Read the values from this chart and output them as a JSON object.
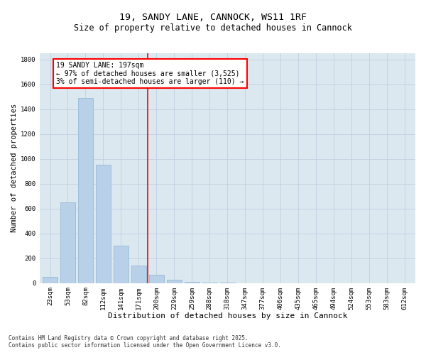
{
  "title1": "19, SANDY LANE, CANNOCK, WS11 1RF",
  "title2": "Size of property relative to detached houses in Cannock",
  "xlabel": "Distribution of detached houses by size in Cannock",
  "ylabel": "Number of detached properties",
  "categories": [
    "23sqm",
    "53sqm",
    "82sqm",
    "112sqm",
    "141sqm",
    "171sqm",
    "200sqm",
    "229sqm",
    "259sqm",
    "288sqm",
    "318sqm",
    "347sqm",
    "377sqm",
    "406sqm",
    "435sqm",
    "465sqm",
    "494sqm",
    "524sqm",
    "553sqm",
    "583sqm",
    "612sqm"
  ],
  "values": [
    50,
    650,
    1490,
    950,
    300,
    140,
    65,
    25,
    10,
    5,
    2,
    1,
    0,
    0,
    0,
    0,
    0,
    0,
    0,
    0,
    0
  ],
  "bar_color": "#b8d0e8",
  "bar_edge_color": "#90b4d0",
  "vline_x": 5.5,
  "vline_color": "red",
  "annotation_text": "19 SANDY LANE: 197sqm\n← 97% of detached houses are smaller (3,525)\n3% of semi-detached houses are larger (110) →",
  "annotation_box_color": "white",
  "annotation_box_edge_color": "red",
  "ylim": [
    0,
    1850
  ],
  "yticks": [
    0,
    200,
    400,
    600,
    800,
    1000,
    1200,
    1400,
    1600,
    1800
  ],
  "grid_color": "#c0d0e0",
  "background_color": "#dce8f0",
  "footer1": "Contains HM Land Registry data © Crown copyright and database right 2025.",
  "footer2": "Contains public sector information licensed under the Open Government Licence v3.0.",
  "title1_fontsize": 9.5,
  "title2_fontsize": 8.5,
  "xlabel_fontsize": 8,
  "ylabel_fontsize": 7.5,
  "tick_fontsize": 6.5,
  "annotation_fontsize": 7,
  "footer_fontsize": 5.5
}
